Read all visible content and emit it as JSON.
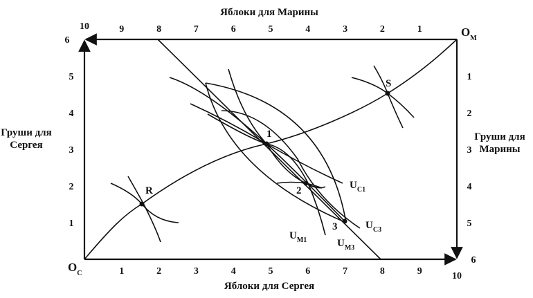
{
  "top_axis": {
    "label": "Яблоки для Марины",
    "ticks": [
      1,
      2,
      3,
      4,
      5,
      6,
      7,
      8,
      9,
      10
    ]
  },
  "bottom_axis": {
    "label": "Яблоки для Сергея",
    "ticks": [
      1,
      2,
      3,
      4,
      5,
      6,
      7,
      8,
      9,
      10
    ]
  },
  "left_axis": {
    "label_lines": [
      "Груши для",
      "Сергея"
    ],
    "ticks": [
      1,
      2,
      3,
      4,
      5,
      6
    ]
  },
  "right_axis": {
    "label_lines": [
      "Груши для",
      "Марины"
    ],
    "ticks": [
      1,
      2,
      3,
      4,
      5,
      6
    ]
  },
  "origins": {
    "sergei": {
      "main": "O",
      "sub": "C"
    },
    "marina": {
      "main": "O",
      "sub": "M"
    }
  },
  "points": [
    "R",
    "S",
    "1",
    "2",
    "3"
  ],
  "curve_labels": [
    {
      "main": "U",
      "sub": "C1"
    },
    {
      "main": "U",
      "sub": "C3"
    },
    {
      "main": "U",
      "sub": "M1"
    },
    {
      "main": "U",
      "sub": "M3"
    }
  ]
}
